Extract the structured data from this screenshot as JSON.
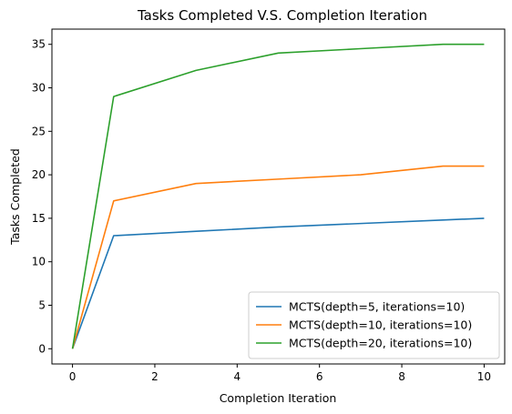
{
  "chart_data": {
    "type": "line",
    "title": "Tasks Completed V.S. Completion Iteration",
    "xlabel": "Completion Iteration",
    "ylabel": "Tasks Completed",
    "xlim": [
      -0.5,
      10.5
    ],
    "ylim": [
      -1.75,
      36.75
    ],
    "xticks": [
      0,
      2,
      4,
      6,
      8,
      10
    ],
    "yticks": [
      0,
      5,
      10,
      15,
      20,
      25,
      30,
      35
    ],
    "grid": false,
    "legend_position": "bottom-right",
    "series": [
      {
        "name": "MCTS(depth=5, iterations=10)",
        "color": "#1f77b4",
        "x": [
          0,
          1,
          3,
          5,
          7,
          9,
          10
        ],
        "y": [
          0,
          13,
          13.5,
          14,
          14.4,
          14.8,
          15
        ]
      },
      {
        "name": "MCTS(depth=10, iterations=10)",
        "color": "#ff7f0e",
        "x": [
          0,
          1,
          3,
          5,
          7,
          9,
          10
        ],
        "y": [
          0,
          17,
          19,
          19.5,
          20,
          21,
          21
        ]
      },
      {
        "name": "MCTS(depth=20, iterations=10)",
        "color": "#2ca02c",
        "x": [
          0,
          1,
          3,
          5,
          7,
          9,
          10
        ],
        "y": [
          0,
          29,
          32,
          34,
          34.5,
          35,
          35
        ]
      }
    ]
  }
}
